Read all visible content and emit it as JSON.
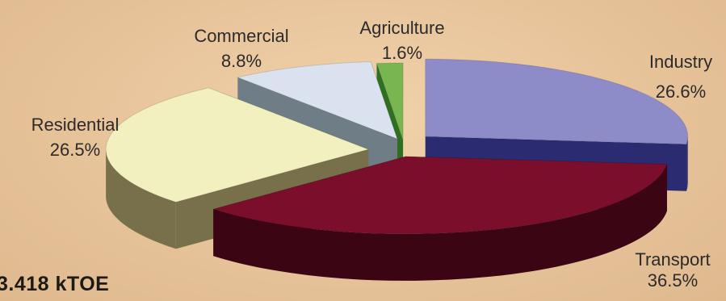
{
  "chart_data": {
    "type": "pie",
    "title": "",
    "total_label": "3.418 kTOE",
    "slices": [
      {
        "name": "Industry",
        "label": "Industry",
        "value_label": "26.6%",
        "value": 26.6,
        "color": "#8d8bc8",
        "side_color": "#2b2b72"
      },
      {
        "name": "Transport",
        "label": "Transport",
        "value_label": "36.5%",
        "value": 36.5,
        "color": "#7b0f2b",
        "side_color": "#3b0513"
      },
      {
        "name": "Residential",
        "label": "Residential",
        "value_label": "26.5%",
        "value": 26.5,
        "color": "#f3f0bf",
        "side_color": "#77704a"
      },
      {
        "name": "Commercial",
        "label": "Commercial",
        "value_label": "8.8%",
        "value": 8.8,
        "color": "#d9e2ee",
        "side_color": "#6f7d86"
      },
      {
        "name": "Agriculture",
        "label": "Agriculture",
        "value_label": "1.6%",
        "value": 1.6,
        "color": "#79b550",
        "side_color": "#2e6f22"
      }
    ],
    "legend": "none",
    "exploded": true,
    "style": "3d"
  }
}
